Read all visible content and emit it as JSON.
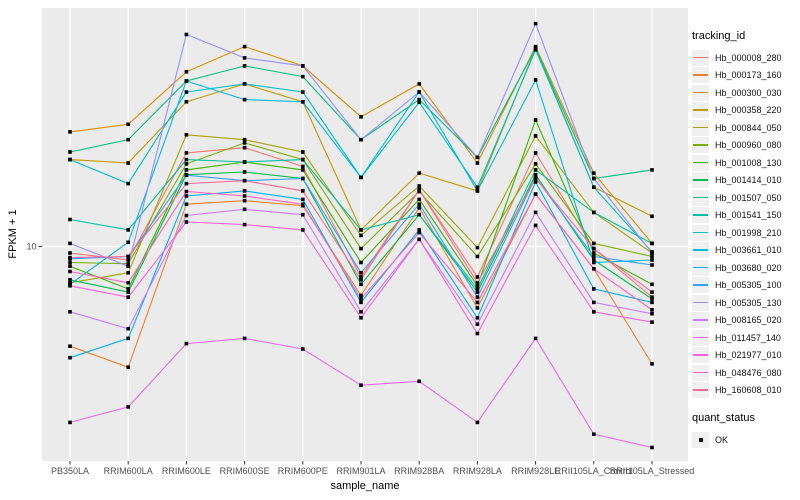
{
  "chart_data": {
    "type": "line",
    "title": "",
    "xlabel": "sample_name",
    "ylabel": "FPKM + 1",
    "y_scale": "log10",
    "y_ticks": [
      10
    ],
    "ylim": [
      1.32,
      95
    ],
    "grid": "ggplot-gray-panel-white-gridlines",
    "legend_position": "right",
    "point_marker": "filled-black-square",
    "categories": [
      "PB350LA",
      "RRIM600LA",
      "RRIM600LE",
      "RRIM600SE",
      "RRIM600PE",
      "RRIM901LA",
      "RRIM928BA",
      "RRIM928LA",
      "RRIM928LE",
      "RRII105LA_Control",
      "RRII105LA_Stressed"
    ],
    "series": [
      {
        "name": "Hb_000008_280",
        "color": "#F8766D",
        "values": [
          9.4,
          8.8,
          24.2,
          25.4,
          21.3,
          7.5,
          17.1,
          7.5,
          24.2,
          9.8,
          6.2
        ]
      },
      {
        "name": "Hb_000173_160",
        "color": "#EA8331",
        "values": [
          3.9,
          3.2,
          14.9,
          15.4,
          14.7,
          6.3,
          14.4,
          5.6,
          16.4,
          8.1,
          3.3
        ]
      },
      {
        "name": "Hb_000300_030",
        "color": "#D89000",
        "values": [
          29.5,
          31.7,
          52.0,
          66.0,
          55.0,
          34.0,
          46.4,
          22.0,
          66.0,
          20.0,
          10.3
        ]
      },
      {
        "name": "Hb_000358_220",
        "color": "#C09B00",
        "values": [
          22.7,
          22.0,
          39.2,
          46.4,
          39.2,
          11.7,
          20.0,
          16.9,
          65.0,
          17.5,
          13.3
        ]
      },
      {
        "name": "Hb_000844_050",
        "color": "#A3A500",
        "values": [
          7.1,
          7.8,
          28.7,
          27.4,
          24.4,
          11.1,
          17.7,
          9.9,
          28.4,
          13.8,
          9.4
        ]
      },
      {
        "name": "Hb_000960_080",
        "color": "#7CAE00",
        "values": [
          8.6,
          8.5,
          21.8,
          26.6,
          22.7,
          9.8,
          16.8,
          9.1,
          21.8,
          10.3,
          9.1
        ]
      },
      {
        "name": "Hb_001008_130",
        "color": "#39B600",
        "values": [
          8.3,
          6.7,
          20.6,
          22.2,
          20.6,
          8.6,
          15.6,
          6.9,
          33.0,
          9.4,
          7.0
        ]
      },
      {
        "name": "Hb_001414_010",
        "color": "#00BB4E",
        "values": [
          7.3,
          6.5,
          19.7,
          20.2,
          19.0,
          7.0,
          13.5,
          6.5,
          19.7,
          8.8,
          6.1
        ]
      },
      {
        "name": "Hb_001507_050",
        "color": "#00BF7D",
        "values": [
          24.4,
          27.4,
          47.7,
          55.0,
          49.7,
          27.4,
          40.0,
          23.2,
          64.8,
          19.0,
          20.6
        ]
      },
      {
        "name": "Hb_001541_150",
        "color": "#00C1A3",
        "values": [
          12.9,
          11.7,
          22.7,
          22.2,
          22.7,
          11.7,
          13.5,
          6.7,
          20.6,
          13.8,
          10.3
        ]
      },
      {
        "name": "Hb_001998_210",
        "color": "#00BFC4",
        "values": [
          22.7,
          18.1,
          43.0,
          46.4,
          43.0,
          19.2,
          39.0,
          17.5,
          64.0,
          17.5,
          9.5
        ]
      },
      {
        "name": "Hb_003661_010",
        "color": "#00BAE0",
        "values": [
          7.0,
          10.4,
          47.7,
          40.0,
          39.2,
          19.2,
          43.0,
          16.9,
          48.2,
          8.6,
          8.8
        ]
      },
      {
        "name": "Hb_003680_020",
        "color": "#00B0F6",
        "values": [
          3.5,
          4.2,
          16.1,
          16.9,
          15.6,
          5.9,
          11.7,
          5.1,
          18.4,
          6.7,
          5.9
        ]
      },
      {
        "name": "Hb_005305_100",
        "color": "#35A2FF",
        "values": [
          8.9,
          9.1,
          19.6,
          18.6,
          19.0,
          7.8,
          14.9,
          6.2,
          19.2,
          9.1,
          8.4
        ]
      },
      {
        "name": "Hb_005305_130",
        "color": "#9590FF",
        "values": [
          10.3,
          8.3,
          74.0,
          59.3,
          55.0,
          27.4,
          43.0,
          23.2,
          82.0,
          19.0,
          9.4
        ]
      },
      {
        "name": "Hb_008165_020",
        "color": "#C77CFF",
        "values": [
          5.4,
          4.6,
          13.4,
          14.2,
          13.5,
          5.4,
          10.7,
          4.8,
          13.8,
          5.9,
          5.3
        ]
      },
      {
        "name": "Hb_011457_140",
        "color": "#E76BF3",
        "values": [
          1.9,
          2.2,
          4.0,
          4.2,
          3.8,
          2.7,
          2.8,
          1.9,
          4.2,
          1.7,
          1.5
        ]
      },
      {
        "name": "Hb_021977_010",
        "color": "#FA62DB",
        "values": [
          6.9,
          6.2,
          12.6,
          12.3,
          11.7,
          5.1,
          10.7,
          4.4,
          12.2,
          5.4,
          4.9
        ]
      },
      {
        "name": "Hb_048476_080",
        "color": "#FF62BC",
        "values": [
          7.9,
          7.1,
          16.8,
          16.1,
          14.9,
          6.1,
          11.4,
          5.9,
          16.4,
          8.1,
          5.5
        ]
      },
      {
        "name": "Hb_160608_010",
        "color": "#FF6A98",
        "values": [
          9.0,
          9.1,
          18.1,
          18.6,
          16.9,
          7.3,
          17.1,
          7.1,
          19.0,
          9.8,
          6.5
        ]
      }
    ]
  },
  "legend": {
    "color_title": "tracking_id",
    "shape_title": "quant_status",
    "shape_items": [
      {
        "label": "OK",
        "marker": "filled-black-square"
      }
    ]
  },
  "colors": {
    "panel_bg": "#EBEBEB",
    "gridline": "#FFFFFF",
    "point": "#000000",
    "axis_text": "#4D4D4D",
    "axis_title": "#000000",
    "tick_mark": "#333333",
    "legend_key_bg": "#F0F0F0"
  }
}
